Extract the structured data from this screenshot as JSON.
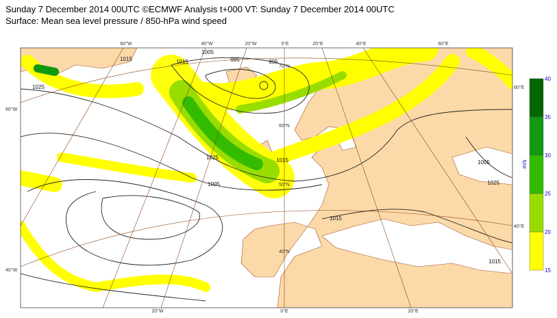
{
  "header": {
    "title": "Sunday 7 December 2014 00UTC ©ECMWF Analysis t+000 VT: Sunday 7 December 2014 00UTC",
    "subtitle": "Surface: Mean sea level pressure / 850-hPa wind speed"
  },
  "colorbar": {
    "unit": "m/s",
    "ticks": [
      15,
      20,
      25,
      30,
      35,
      40
    ],
    "colors": [
      "#ffff00",
      "#99dd00",
      "#33bb00",
      "#119911",
      "#006600"
    ]
  },
  "map": {
    "top_labels": [
      "60°W",
      "40°W",
      "20°W",
      "0°E",
      "20°E",
      "40°E",
      "60°E"
    ],
    "bottom_labels": [
      "20°W",
      "0°E",
      "20°E"
    ],
    "left_labels": [
      "60°W",
      "40°W"
    ],
    "right_labels": [
      "60°E",
      "40°E"
    ],
    "lat_labels": [
      "70°N",
      "60°N",
      "50°N",
      "40°N"
    ],
    "isobar_labels": [
      "1015",
      "1015",
      "995",
      "995",
      "1025",
      "1005",
      "1015",
      "1025",
      "1005",
      "1015",
      "1005",
      "1025",
      "1015"
    ]
  }
}
